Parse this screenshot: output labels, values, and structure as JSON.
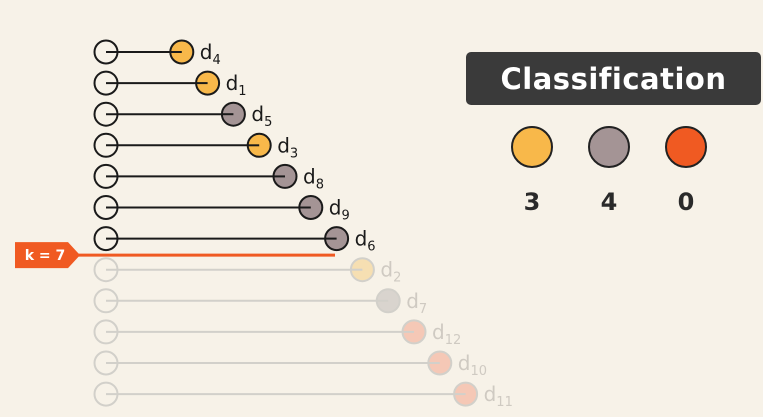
{
  "neighbors": [
    {
      "label": "d",
      "sub": "4",
      "class": "yellow",
      "distance": 1,
      "active": true
    },
    {
      "label": "d",
      "sub": "1",
      "class": "yellow",
      "distance": 2,
      "active": true
    },
    {
      "label": "d",
      "sub": "5",
      "class": "gray",
      "distance": 3,
      "active": true
    },
    {
      "label": "d",
      "sub": "3",
      "class": "yellow",
      "distance": 4,
      "active": true
    },
    {
      "label": "d",
      "sub": "8",
      "class": "gray",
      "distance": 5,
      "active": true
    },
    {
      "label": "d",
      "sub": "9",
      "class": "gray",
      "distance": 6,
      "active": true
    },
    {
      "label": "d",
      "sub": "6",
      "class": "gray",
      "distance": 7,
      "active": true
    },
    {
      "label": "d",
      "sub": "2",
      "class": "yellow",
      "distance": 8,
      "active": false
    },
    {
      "label": "d",
      "sub": "7",
      "class": "gray",
      "distance": 9,
      "active": false
    },
    {
      "label": "d",
      "sub": "12",
      "class": "orange",
      "distance": 10,
      "active": false
    },
    {
      "label": "d",
      "sub": "10",
      "class": "orange",
      "distance": 11,
      "active": false
    },
    {
      "label": "d",
      "sub": "11",
      "class": "orange",
      "distance": 12,
      "active": false
    }
  ],
  "k_marker": {
    "label": "k = 7",
    "k": 7
  },
  "classification": {
    "title": "Classification",
    "classes": [
      {
        "name": "yellow",
        "color": "#f8b84a",
        "count": "3"
      },
      {
        "name": "gray",
        "color": "#a49495",
        "count": "4"
      },
      {
        "name": "orange",
        "color": "#f05a22",
        "count": "0"
      }
    ]
  },
  "colors": {
    "yellow": "#f8b84a",
    "gray": "#a49495",
    "orange": "#f05a22",
    "line": "#1a1a1a",
    "k_line": "#f05a22",
    "faded_yellow": "#f6dfb2",
    "faded_gray": "#d9d4ce",
    "faded_orange": "#f5c8b6",
    "faded_line": "#d2d0ca"
  }
}
